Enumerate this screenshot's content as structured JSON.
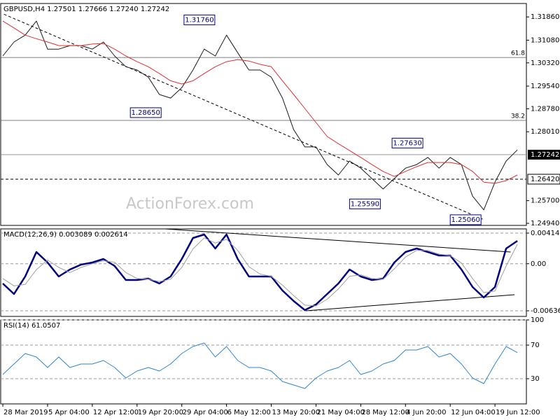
{
  "chart_data": [
    {
      "type": "line",
      "title": "GBPUSD,H4  1.27501 1.27666 1.27240 1.27242",
      "watermark": "ActionForex.com",
      "x": [
        0,
        1,
        2,
        3,
        4,
        5,
        6,
        7,
        8,
        9,
        10,
        11,
        12,
        13,
        14,
        15,
        16,
        17,
        18,
        19,
        20,
        21,
        22,
        23,
        24,
        25,
        26,
        27,
        28,
        29,
        30,
        31,
        32,
        33,
        34,
        35,
        36,
        37,
        38,
        39,
        40,
        41,
        42,
        43,
        44,
        45,
        46
      ],
      "xlim": [
        -0.19,
        46.81
      ],
      "ylim": [
        1.2487,
        1.3231
      ],
      "yticks": [
        {
          "value": 1.3186,
          "label": "1.31860"
        },
        {
          "value": 1.3108,
          "label": "1.31080"
        },
        {
          "value": 1.3032,
          "label": "1.30320"
        },
        {
          "value": 1.2954,
          "label": "1.29540"
        },
        {
          "value": 1.2878,
          "label": "1.28780"
        },
        {
          "value": 1.2801,
          "label": "1.28010"
        },
        {
          "value": 1.257,
          "label": "1.25700"
        },
        {
          "value": 1.2494,
          "label": "1.24940"
        }
      ],
      "grid": false,
      "current_price": 1.27242,
      "support_level": {
        "value": 1.2642,
        "label": "1.26420"
      },
      "levels": [
        {
          "value": 1.305,
          "label": "61.8"
        },
        {
          "value": 1.2839,
          "label": "38.2"
        }
      ],
      "trendlines": [
        {
          "x": [
            0.1,
            42.9
          ],
          "values": [
            1.3195,
            1.2508
          ],
          "style": "dashed"
        }
      ],
      "annotations": [
        {
          "label": "1.31760",
          "value": 1.3176,
          "x": 16.2
        },
        {
          "label": "1.28650",
          "value": 1.2865,
          "x": 11.4
        },
        {
          "label": "1.27630",
          "value": 1.2763,
          "x": 34.8
        },
        {
          "label": "1.25590",
          "value": 1.2559,
          "x": 31
        },
        {
          "label": "1.25060",
          "value": 1.2506,
          "x": 40
        }
      ],
      "series": [
        {
          "name": "GBPUSD",
          "color": "#1a1a1a",
          "width": 1,
          "values": [
            1.3055,
            1.3102,
            1.3125,
            1.3172,
            1.3078,
            1.3078,
            1.309,
            1.309,
            1.3078,
            1.3102,
            1.3055,
            1.3019,
            1.3008,
            1.2984,
            1.2926,
            1.2914,
            1.2949,
            1.3008,
            1.3078,
            1.3055,
            1.3125,
            1.3066,
            1.3008,
            1.3008,
            1.2984,
            1.2914,
            1.2808,
            1.275,
            1.275,
            1.2691,
            1.2656,
            1.2703,
            1.2679,
            1.2644,
            1.2609,
            1.2644,
            1.2679,
            1.2691,
            1.2715,
            1.2679,
            1.2715,
            1.2691,
            1.2585,
            1.2539,
            1.2632,
            1.2703,
            1.274
          ]
        },
        {
          "name": "MA",
          "color": "#e03030",
          "width": 1,
          "values": [
            1.3172,
            1.3149,
            1.3125,
            1.3113,
            1.3102,
            1.309,
            1.309,
            1.309,
            1.3095,
            1.3097,
            1.3078,
            1.3055,
            1.3036,
            1.3019,
            1.2996,
            1.2972,
            1.2961,
            1.2972,
            1.2996,
            1.3019,
            1.3036,
            1.3043,
            1.3038,
            1.3027,
            1.3019,
            1.2972,
            1.2926,
            1.2879,
            1.2832,
            1.2785,
            1.2761,
            1.2738,
            1.2715,
            1.2691,
            1.2668,
            1.2651,
            1.2668,
            1.2684,
            1.2698,
            1.2698,
            1.2698,
            1.2691,
            1.2668,
            1.2632,
            1.2628,
            1.2637,
            1.2656
          ]
        }
      ]
    },
    {
      "type": "line",
      "title": "MACD(12,26,9) 0.003089 0.002614",
      "x": [
        0,
        1,
        2,
        3,
        4,
        5,
        6,
        7,
        8,
        9,
        10,
        11,
        12,
        13,
        14,
        15,
        16,
        17,
        18,
        19,
        20,
        21,
        22,
        23,
        24,
        25,
        26,
        27,
        28,
        29,
        30,
        31,
        32,
        33,
        34,
        35,
        36,
        37,
        38,
        39,
        40,
        41,
        42,
        43,
        44,
        45,
        46
      ],
      "xlim": [
        -0.19,
        46.81
      ],
      "ylim": [
        -0.007122,
        0.004709
      ],
      "yticks": [
        0.004141,
        {
          "value": 0,
          "label": "0.00"
        },
        -0.006365
      ],
      "grid": true,
      "trendlines": [
        {
          "x": [
            14.5,
            45.4
          ],
          "values": [
            0.004709,
            0.001585
          ],
          "style": "solid"
        },
        {
          "x": [
            27.1,
            45.75
          ],
          "values": [
            -0.006365,
            -0.004187
          ],
          "style": "solid"
        }
      ],
      "series": [
        {
          "name": "MACD",
          "color": "#000080",
          "width": 2.5,
          "values": [
            -0.002674,
            -0.004094,
            -0.001727,
            0.001585,
            0.000166,
            -0.001727,
            -0.000781,
            -0.000118,
            0.000166,
            0.000639,
            -0.000308,
            -0.002201,
            -0.002201,
            -0.002011,
            -0.002674,
            -0.001727,
            0.000639,
            0.003478,
            0.003952,
            0.002059,
            0.003952,
            0.000639,
            -0.001727,
            -0.001727,
            -0.001727,
            -0.00362,
            -0.00504,
            -0.006271,
            -0.005513,
            -0.004094,
            -0.002674,
            -0.000781,
            -0.001727,
            -0.002201,
            -0.002011,
            0.000166,
            0.001585,
            0.002059,
            0.001585,
            0.001112,
            0.001112,
            -0.000781,
            -0.003147,
            -0.004567,
            -0.003147,
            0.002059,
            0.003089
          ]
        },
        {
          "name": "Signal",
          "color": "#a0a0a0",
          "width": 1,
          "values": [
            -0.002,
            -0.003,
            -0.0028,
            -0.0008,
            0.0005,
            -0.0005,
            -0.0012,
            -0.0005,
            0,
            0.0004,
            0.0002,
            -0.0012,
            -0.002,
            -0.0021,
            -0.0024,
            -0.0021,
            -0.0005,
            0.002,
            0.0035,
            0.0028,
            0.0033,
            0.0018,
            -0.0004,
            -0.0014,
            -0.0017,
            -0.0029,
            -0.0043,
            -0.0056,
            -0.0057,
            -0.0048,
            -0.0034,
            -0.0017,
            -0.0015,
            -0.002,
            -0.0021,
            -0.0007,
            0.0009,
            0.0018,
            0.0018,
            0.0013,
            0.0011,
            0.0001,
            -0.002,
            -0.0039,
            -0.0037,
            -0.0003,
            0.002614
          ]
        }
      ]
    },
    {
      "type": "line",
      "title": "RSI(14) 61.0507",
      "x": [
        0,
        1,
        2,
        3,
        4,
        5,
        6,
        7,
        8,
        9,
        10,
        11,
        12,
        13,
        14,
        15,
        16,
        17,
        18,
        19,
        20,
        21,
        22,
        23,
        24,
        25,
        26,
        27,
        28,
        29,
        30,
        31,
        32,
        33,
        34,
        35,
        36,
        37,
        38,
        39,
        40,
        41,
        42,
        43,
        44,
        45,
        46
      ],
      "xlim": [
        -0.19,
        46.81
      ],
      "ylim": [
        0,
        100
      ],
      "yticks": [
        100,
        70,
        30
      ],
      "grid": true,
      "xticks": [
        {
          "value": 0,
          "label": "28 Mar 2019"
        },
        {
          "value": 4,
          "label": "5 Apr 04:00"
        },
        {
          "value": 8,
          "label": "12 Apr 12:00"
        },
        {
          "value": 12,
          "label": "19 Apr 20:00"
        },
        {
          "value": 16,
          "label": "29 Apr 04:00"
        },
        {
          "value": 20,
          "label": "6 May 12:00"
        },
        {
          "value": 24,
          "label": "13 May 20:00"
        },
        {
          "value": 28,
          "label": "21 May 04:00"
        },
        {
          "value": 32,
          "label": "28 May 12:00"
        },
        {
          "value": 36,
          "label": "4 Jun 20:00"
        },
        {
          "value": 40,
          "label": "12 Jun 04:00"
        },
        {
          "value": 44,
          "label": "19 Jun 12:00"
        }
      ],
      "series": [
        {
          "name": "RSI",
          "color": "#2f86d0",
          "width": 1,
          "values": [
            35,
            47.5,
            60,
            55.8,
            43.3,
            55.8,
            43.3,
            47.5,
            47.5,
            51.7,
            43.3,
            30.8,
            39.2,
            43.3,
            39.2,
            47.5,
            60,
            68.3,
            72.5,
            55.8,
            68.3,
            51.7,
            43.3,
            43.3,
            39.2,
            26.7,
            22.5,
            18.3,
            30.8,
            39.2,
            43.3,
            51.7,
            35,
            39.2,
            47.5,
            51.7,
            64.2,
            64.2,
            68.3,
            55.8,
            60,
            47.5,
            30.8,
            24.2,
            47.5,
            68.3,
            61.0507
          ]
        }
      ]
    }
  ]
}
